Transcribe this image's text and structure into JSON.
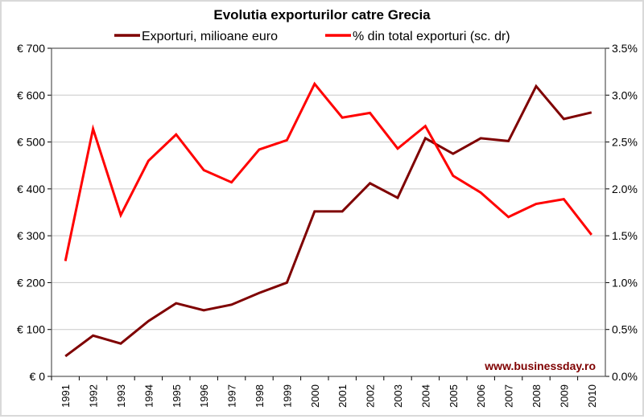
{
  "chart_data": {
    "type": "line",
    "title": "Evolutia exporturilor catre Grecia",
    "watermark": "www.businessday.ro",
    "categories": [
      "1991",
      "1992",
      "1993",
      "1994",
      "1995",
      "1996",
      "1997",
      "1998",
      "1999",
      "2000",
      "2001",
      "2002",
      "2003",
      "2004",
      "2005",
      "2006",
      "2007",
      "2008",
      "2009",
      "2010"
    ],
    "series": [
      {
        "name": "Exporturi, milioane euro",
        "axis": "left",
        "color": "#7f0000",
        "values": [
          43,
          87,
          70,
          118,
          156,
          141,
          153,
          178,
          200,
          352,
          352,
          412,
          381,
          508,
          475,
          508,
          502,
          619,
          549,
          563
        ]
      },
      {
        "name": "% din total exporturi (sc. dr)",
        "axis": "right",
        "color": "#ff0000",
        "values": [
          1.23,
          2.64,
          1.72,
          2.3,
          2.58,
          2.2,
          2.07,
          2.42,
          2.52,
          3.12,
          2.76,
          2.81,
          2.43,
          2.67,
          2.14,
          1.96,
          1.7,
          1.84,
          1.89,
          1.51
        ]
      }
    ],
    "yleft": {
      "lim": [
        0,
        700
      ],
      "ticks": [
        "€ 0",
        "€ 100",
        "€ 200",
        "€ 300",
        "€ 400",
        "€ 500",
        "€ 600",
        "€ 700"
      ]
    },
    "yright": {
      "lim": [
        0,
        3.5
      ],
      "ticks": [
        "0.0%",
        "0.5%",
        "1.0%",
        "1.5%",
        "2.0%",
        "2.5%",
        "3.0%",
        "3.5%"
      ]
    },
    "grid": true,
    "legend": "top"
  }
}
